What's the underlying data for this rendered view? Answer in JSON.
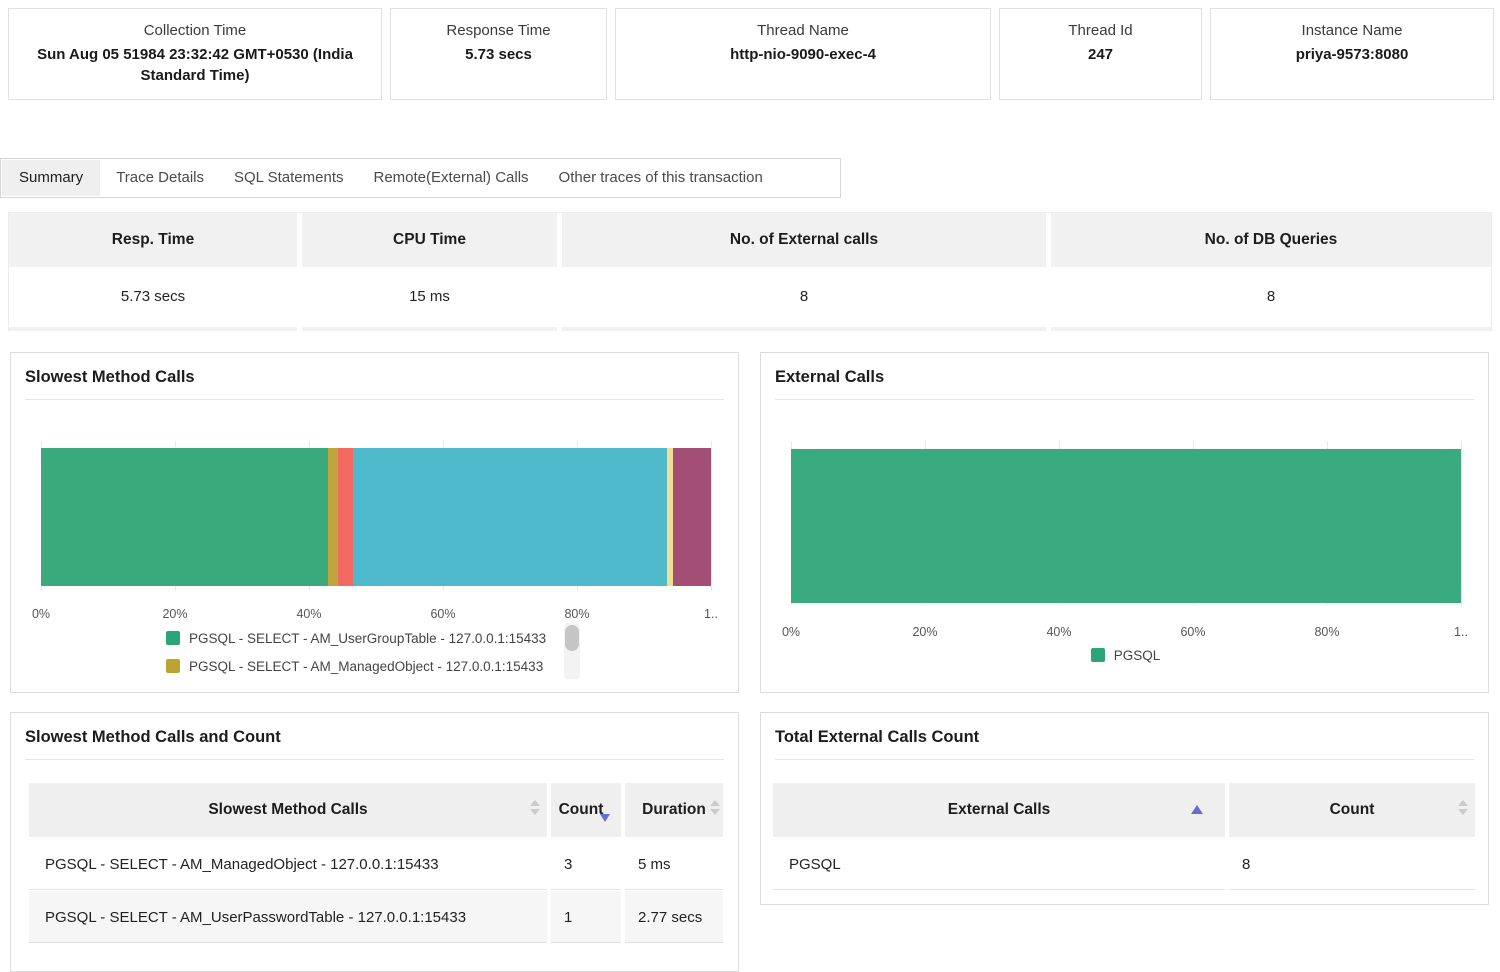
{
  "cards": [
    {
      "label": "Collection Time",
      "value": "Sun Aug 05 51984 23:32:42 GMT+0530 (India Standard Time)"
    },
    {
      "label": "Response Time",
      "value": "5.73 secs"
    },
    {
      "label": "Thread Name",
      "value": "http-nio-9090-exec-4"
    },
    {
      "label": "Thread Id",
      "value": "247"
    },
    {
      "label": "Instance Name",
      "value": "priya-9573:8080"
    }
  ],
  "tabs": [
    {
      "label": "Summary",
      "active": true
    },
    {
      "label": "Trace Details",
      "active": false
    },
    {
      "label": "SQL Statements",
      "active": false
    },
    {
      "label": "Remote(External) Calls",
      "active": false
    },
    {
      "label": "Other traces of this transaction",
      "active": false
    }
  ],
  "summary_table": {
    "columns": [
      "Resp. Time",
      "CPU Time",
      "No. of External calls",
      "No. of DB Queries"
    ],
    "values": [
      "5.73 secs",
      "15 ms",
      "8",
      "8"
    ]
  },
  "chart_data": [
    {
      "type": "bar",
      "subtype": "horizontal-stacked",
      "title": "Slowest Method Calls",
      "xlim": [
        0,
        100
      ],
      "x_ticks": [
        "0%",
        "20%",
        "40%",
        "60%",
        "80%",
        "1.."
      ],
      "grid": true,
      "segments": [
        {
          "label": "PGSQL - SELECT - AM_UserGroupTable - 127.0.0.1:15433",
          "value": 42.8,
          "color": "#3aaa7d"
        },
        {
          "label": "PGSQL - SELECT - AM_ManagedObject - 127.0.0.1:15433",
          "value": 1.5,
          "color": "#bfa53e"
        },
        {
          "label": "",
          "value": 2.2,
          "color": "#f4695f"
        },
        {
          "label": "",
          "value": 47.0,
          "color": "#4db9ca"
        },
        {
          "label": "",
          "value": 0.8,
          "color": "#f2dc90"
        },
        {
          "label": "",
          "value": 5.7,
          "color": "#a34e74"
        }
      ],
      "legend_position": "bottom-left",
      "legend": [
        {
          "label": "PGSQL - SELECT - AM_UserGroupTable - 127.0.0.1:15433",
          "color": "#2aa577"
        },
        {
          "label": "PGSQL - SELECT - AM_ManagedObject - 127.0.0.1:15433",
          "color": "#bfa332"
        }
      ],
      "legend_scrollable": true
    },
    {
      "type": "bar",
      "subtype": "horizontal-stacked",
      "title": "External Calls",
      "xlim": [
        0,
        100
      ],
      "x_ticks": [
        "0%",
        "20%",
        "40%",
        "60%",
        "80%",
        "1.."
      ],
      "grid": true,
      "segments": [
        {
          "label": "PGSQL",
          "value": 100,
          "color": "#3aab7f"
        }
      ],
      "legend_position": "bottom-center",
      "legend": [
        {
          "label": "PGSQL",
          "color": "#2aa577"
        }
      ],
      "legend_scrollable": false
    }
  ],
  "method_table": {
    "title": "Slowest Method Calls and Count",
    "columns": [
      "Slowest Method Calls",
      "Count",
      "Duration"
    ],
    "sort": {
      "column": "Count",
      "direction": "desc"
    },
    "rows": [
      {
        "method": "PGSQL - SELECT - AM_ManagedObject - 127.0.0.1:15433",
        "count": "3",
        "duration": "5 ms"
      },
      {
        "method": "PGSQL - SELECT - AM_UserPasswordTable - 127.0.0.1:15433",
        "count": "1",
        "duration": "2.77 secs"
      }
    ]
  },
  "external_table": {
    "title": "Total External Calls Count",
    "columns": [
      "External Calls",
      "Count"
    ],
    "sort": {
      "column": "External Calls",
      "direction": "asc"
    },
    "rows": [
      {
        "name": "PGSQL",
        "count": "8"
      }
    ]
  },
  "colors": {
    "sort_active": "#6b6bd6",
    "header_bg": "#f1f1f1"
  }
}
